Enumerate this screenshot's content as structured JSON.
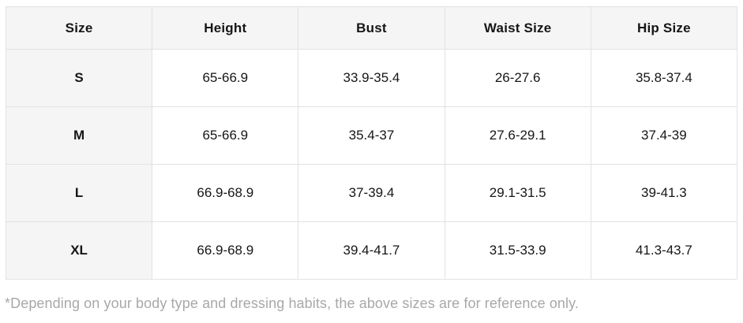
{
  "table": {
    "columns": [
      "Size",
      "Height",
      "Bust",
      "Waist Size",
      "Hip Size"
    ],
    "rows": [
      {
        "size": "S",
        "values": [
          "65-66.9",
          "33.9-35.4",
          "26-27.6",
          "35.8-37.4"
        ]
      },
      {
        "size": "M",
        "values": [
          "65-66.9",
          "35.4-37",
          "27.6-29.1",
          "37.4-39"
        ]
      },
      {
        "size": "L",
        "values": [
          "66.9-68.9",
          "37-39.4",
          "29.1-31.5",
          "39-41.3"
        ]
      },
      {
        "size": "XL",
        "values": [
          "66.9-68.9",
          "39.4-41.7",
          "31.5-33.9",
          "41.3-43.7"
        ]
      }
    ]
  },
  "footnote": "*Depending on your body type and dressing habits, the above sizes are for reference only.",
  "colors": {
    "header_background": "#f5f5f5",
    "cell_background": "#ffffff",
    "border": "#e2e2e2",
    "text": "#161616",
    "footnote_text": "#a8a8a8"
  }
}
